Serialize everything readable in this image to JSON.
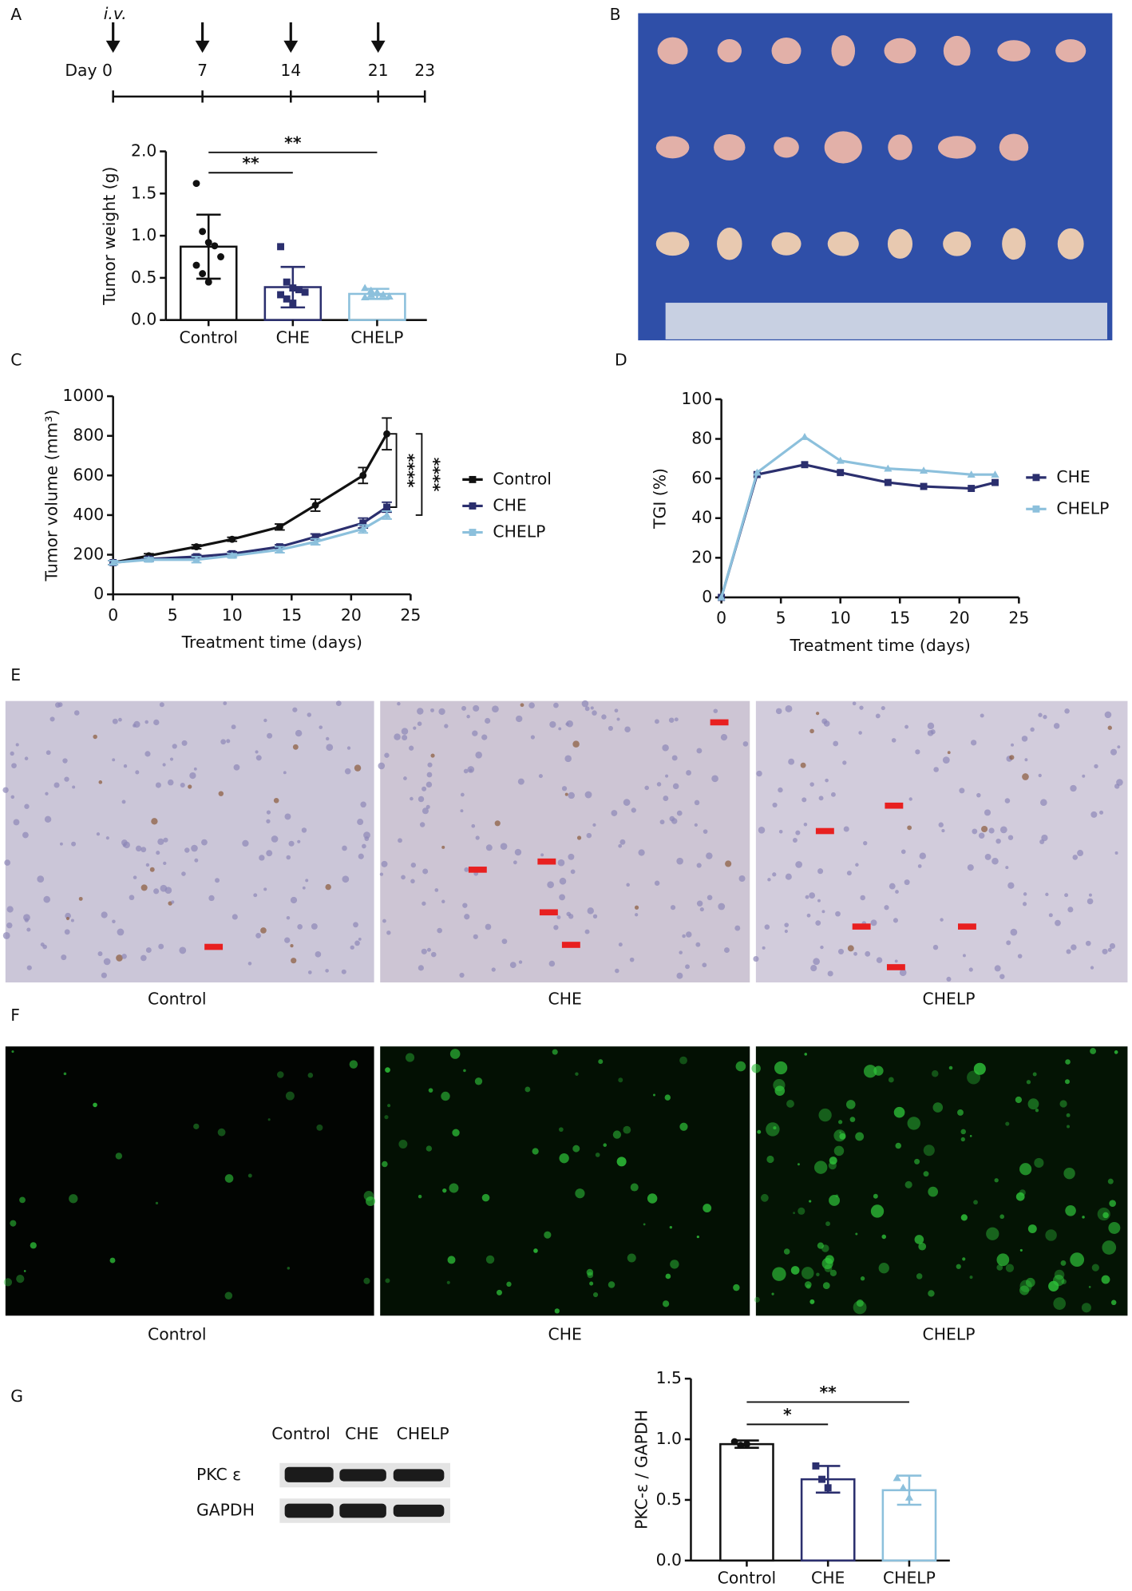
{
  "panel_labels": [
    "A",
    "B",
    "C",
    "D",
    "E",
    "F",
    "G"
  ],
  "timeline": {
    "route": "i.v.",
    "days": [
      "Day 0",
      "7",
      "14",
      "21",
      "23"
    ]
  },
  "images": {
    "E_captions": [
      "Control",
      "CHE",
      "CHELP"
    ],
    "F_captions": [
      "Control",
      "CHE",
      "CHELP"
    ]
  },
  "western_blot": {
    "lanes": [
      "Control",
      "CHE",
      "CHELP"
    ],
    "rows": [
      "PKC ε",
      "GAPDH"
    ]
  },
  "chart_data": [
    {
      "type": "bar",
      "ylabel": "Tumor  weight (g)",
      "categories": [
        "Control",
        "CHE",
        "CHELP"
      ],
      "colors": [
        "#111111",
        "#2b2f6e",
        "#8cc0dc"
      ],
      "values": [
        0.87,
        0.39,
        0.31
      ],
      "errors": [
        0.38,
        0.24,
        0.06
      ],
      "points": [
        [
          1.62,
          1.05,
          0.92,
          0.88,
          0.75,
          0.65,
          0.55,
          0.45
        ],
        [
          0.87,
          0.45,
          0.38,
          0.36,
          0.33,
          0.3,
          0.25,
          0.2
        ],
        [
          0.38,
          0.35,
          0.33,
          0.3,
          0.28,
          0.27,
          0.3,
          0.32
        ]
      ],
      "significance": [
        "**",
        "**"
      ],
      "ylim": [
        0,
        2
      ],
      "yticks": [
        {
          "value": 0,
          "label": "0.0"
        },
        {
          "value": 0.5,
          "label": "0.5"
        },
        {
          "value": 1,
          "label": "1.0"
        },
        {
          "value": 1.5,
          "label": "1.5"
        },
        {
          "value": 2,
          "label": "2.0"
        }
      ]
    },
    {
      "type": "line",
      "xlabel": "Treatment time (days)",
      "ylabel": "Tumor volume (mm³)",
      "x": [
        0,
        3,
        7,
        10,
        14,
        17,
        21,
        23
      ],
      "series": [
        {
          "name": "Control",
          "color": "#111111",
          "values": [
            160,
            195,
            240,
            278,
            340,
            450,
            600,
            810
          ],
          "errors": [
            10,
            10,
            10,
            10,
            15,
            30,
            40,
            80
          ]
        },
        {
          "name": "CHE",
          "color": "#2b2f6e",
          "values": [
            160,
            178,
            190,
            205,
            240,
            290,
            360,
            440
          ],
          "errors": [
            10,
            10,
            10,
            10,
            10,
            15,
            25,
            25
          ]
        },
        {
          "name": "CHELP",
          "color": "#8cc0dc",
          "values": [
            160,
            175,
            175,
            195,
            225,
            265,
            330,
            400
          ],
          "errors": [
            10,
            10,
            15,
            10,
            15,
            15,
            20,
            20
          ]
        }
      ],
      "significance": [
        "****",
        "****"
      ],
      "xlim": [
        0,
        25
      ],
      "xticks": [
        0,
        5,
        10,
        15,
        20,
        25
      ],
      "ylim": [
        0,
        1000
      ],
      "yticks": [
        0,
        200,
        400,
        600,
        800,
        1000
      ]
    },
    {
      "type": "line",
      "xlabel": "Treatment time (days)",
      "ylabel": "TGI (%)",
      "x": [
        0,
        3,
        7,
        10,
        14,
        17,
        21,
        23
      ],
      "series": [
        {
          "name": "CHE",
          "color": "#2b2f6e",
          "values": [
            0,
            62,
            67,
            63,
            58,
            56,
            55,
            58
          ]
        },
        {
          "name": "CHELP",
          "color": "#8cc0dc",
          "values": [
            0,
            63,
            81,
            69,
            65,
            64,
            62,
            62
          ]
        }
      ],
      "xlim": [
        0,
        25
      ],
      "xticks": [
        0,
        5,
        10,
        15,
        20,
        25
      ],
      "ylim": [
        0,
        100
      ],
      "yticks": [
        0,
        20,
        40,
        60,
        80,
        100
      ]
    },
    {
      "type": "bar",
      "ylabel": "PKC-ε / GAPDH",
      "categories": [
        "Control",
        "CHE",
        "CHELP"
      ],
      "colors": [
        "#111111",
        "#2b2f6e",
        "#8cc0dc"
      ],
      "values": [
        0.96,
        0.67,
        0.58
      ],
      "errors": [
        0.03,
        0.11,
        0.12
      ],
      "points": [
        [
          0.98,
          0.95,
          0.96
        ],
        [
          0.78,
          0.67,
          0.6
        ],
        [
          0.68,
          0.6,
          0.52
        ]
      ],
      "significance": [
        "*",
        "**"
      ],
      "ylim": [
        0,
        1.5
      ],
      "yticks": [
        {
          "value": 0,
          "label": "0.0"
        },
        {
          "value": 0.5,
          "label": "0.5"
        },
        {
          "value": 1,
          "label": "1.0"
        },
        {
          "value": 1.5,
          "label": "1.5"
        }
      ]
    }
  ]
}
